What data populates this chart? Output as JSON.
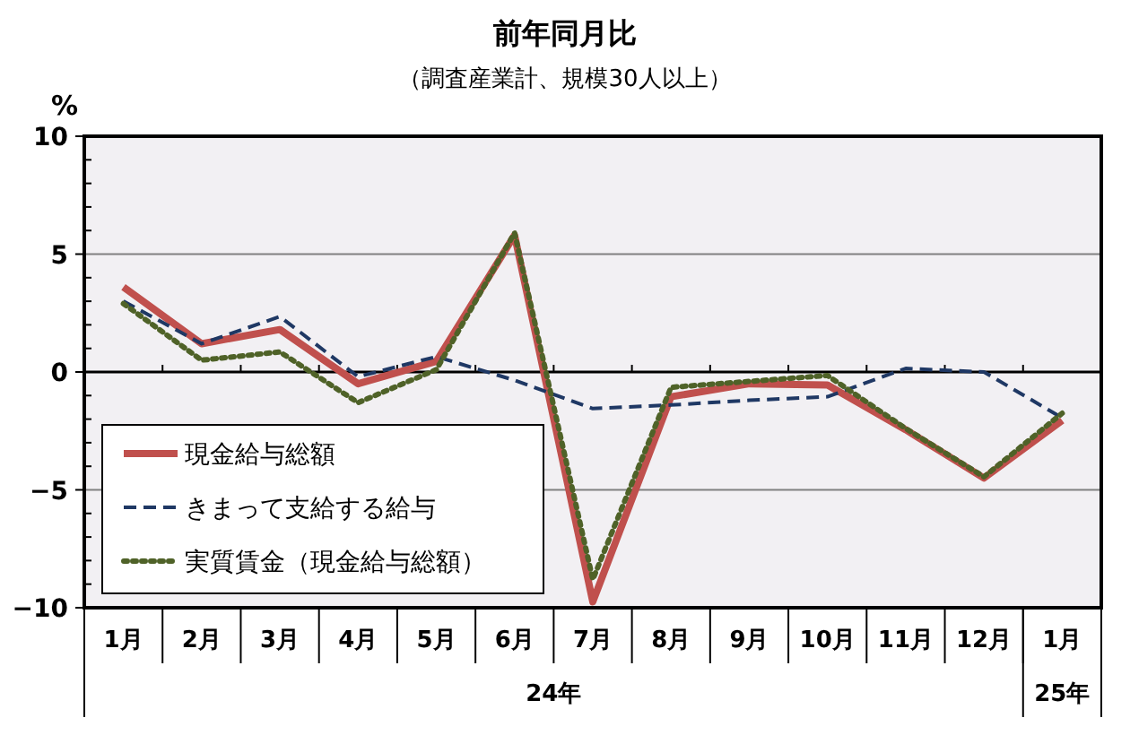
{
  "chart_data": {
    "type": "line",
    "title": "前年同月比",
    "subtitle": "（調査産業計、規模30人以上）",
    "ylabel": "%",
    "categories": [
      "1月",
      "2月",
      "3月",
      "4月",
      "5月",
      "6月",
      "7月",
      "8月",
      "9月",
      "10月",
      "11月",
      "12月",
      "1月"
    ],
    "annotations": [
      "24年",
      "25年"
    ],
    "series": [
      {
        "name": "現金給与総額",
        "color": "#c0504d",
        "line_style": "solid",
        "values": [
          3.6,
          1.2,
          1.8,
          -0.5,
          0.45,
          5.8,
          -9.75,
          -1.05,
          -0.5,
          -0.55,
          -2.45,
          -4.5,
          -2.05
        ]
      },
      {
        "name": "きまって支給する給与",
        "color": "#1f3864",
        "line_style": "dashed",
        "values": [
          3.0,
          1.2,
          2.35,
          -0.2,
          0.65,
          -0.35,
          -1.55,
          -1.4,
          -1.2,
          -1.05,
          0.15,
          0.0,
          -1.95
        ]
      },
      {
        "name": "実質賃金（現金給与総額）",
        "color": "#4f6228",
        "line_style": "dotted",
        "values": [
          2.9,
          0.5,
          0.85,
          -1.3,
          0.1,
          5.9,
          -8.8,
          -0.65,
          -0.4,
          -0.15,
          -2.4,
          -4.45,
          -1.75
        ]
      }
    ],
    "ylim": [
      -10,
      10
    ],
    "yticks": [
      10,
      {
        "value": 9,
        "label": null
      },
      {
        "value": 8,
        "label": null
      },
      {
        "value": 7,
        "label": null
      },
      {
        "value": 6,
        "label": null
      },
      5,
      {
        "value": 4,
        "label": null
      },
      {
        "value": 3,
        "label": null
      },
      {
        "value": 2,
        "label": null
      },
      {
        "value": 1,
        "label": null
      },
      0,
      {
        "value": -1,
        "label": null
      },
      {
        "value": -2,
        "label": null
      },
      {
        "value": -3,
        "label": null
      },
      {
        "value": -4,
        "label": null
      },
      -5,
      {
        "value": -6,
        "label": null
      },
      {
        "value": -7,
        "label": null
      },
      {
        "value": -8,
        "label": null
      },
      {
        "value": -9,
        "label": null
      },
      -10
    ],
    "grid": "y",
    "legend": "bottom left",
    "marker": "none"
  }
}
